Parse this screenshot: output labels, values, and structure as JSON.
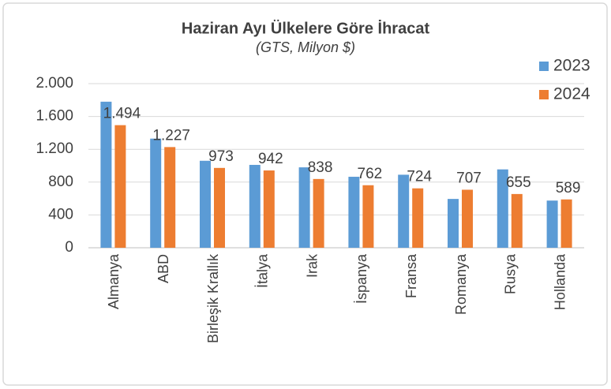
{
  "chart_data": {
    "type": "bar",
    "title": "Haziran Ayı Ülkelere Göre İhracat",
    "subtitle": "(GTS, Milyon $)",
    "categories": [
      "Almanya",
      "ABD",
      "Birleşik Krallık",
      "İtalya",
      "Irak",
      "İspanya",
      "Fransa",
      "Romanya",
      "Rusya",
      "Hollanda"
    ],
    "series": [
      {
        "name": "2023",
        "color": "#5b9bd5",
        "values": [
          1780,
          1330,
          1060,
          1010,
          980,
          865,
          890,
          595,
          955,
          575
        ]
      },
      {
        "name": "2024",
        "color": "#ed7d31",
        "values": [
          1494,
          1227,
          973,
          942,
          838,
          762,
          724,
          707,
          655,
          589
        ],
        "value_labels": [
          "1.494",
          "1.227",
          "973",
          "942",
          "838",
          "762",
          "724",
          "707",
          "655",
          "589"
        ]
      }
    ],
    "ylim": [
      0,
      2000
    ],
    "yticks": [
      0,
      400,
      800,
      {
        "value": 1200,
        "label": "1.200"
      },
      {
        "value": 1600,
        "label": "1.600"
      },
      {
        "value": 2000,
        "label": "2.000"
      }
    ],
    "grid": true,
    "legend": "top-right"
  }
}
